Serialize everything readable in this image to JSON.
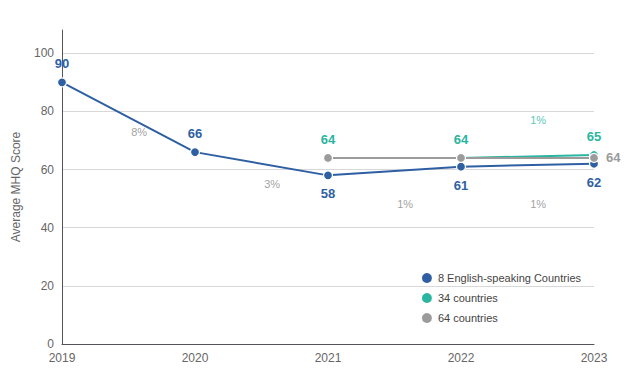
{
  "chart_data": {
    "type": "line",
    "x": [
      2019,
      2020,
      2021,
      2022,
      2023
    ],
    "series": [
      {
        "name": "8 English-speaking Countries",
        "color": "#2e5fa3",
        "values": [
          90,
          66,
          58,
          61,
          62
        ],
        "data_labels": true,
        "marker": "circle",
        "line_style": "solid"
      },
      {
        "name": "34 countries",
        "color": "#2ab5a0",
        "values": [
          null,
          null,
          64,
          64,
          65
        ],
        "data_labels": true,
        "marker": "circle",
        "line_style": "solid"
      },
      {
        "name": "64 countries",
        "color": "#9b9b9b",
        "values": [
          null,
          null,
          64,
          64,
          64
        ],
        "data_labels": true,
        "value_labels": [
          null,
          null,
          null,
          null,
          "64"
        ],
        "marker": "circle",
        "line_style": "solid"
      }
    ],
    "ylabel": "Average MHQ Score",
    "xlim": [
      2019,
      2023
    ],
    "xticks": [
      2019,
      2020,
      2021,
      2022,
      2023
    ],
    "ylim": [
      0,
      108
    ],
    "yticks": [
      0,
      20,
      40,
      60,
      80,
      100
    ],
    "grid": true,
    "legend": "lower right",
    "annotations": [
      {
        "text": "8%",
        "x": 2019.52,
        "y": 73,
        "color": "#888888"
      },
      {
        "text": "3%",
        "x": 2020.52,
        "y": 55,
        "color": "#888888"
      },
      {
        "text": "1%",
        "x": 2021.52,
        "y": 48,
        "color": "#888888"
      },
      {
        "text": "1%",
        "x": 2022.52,
        "y": 48,
        "color": "#888888"
      },
      {
        "text": "1%",
        "x": 2022.52,
        "y": 77,
        "color": "#2ab5a0"
      }
    ]
  }
}
